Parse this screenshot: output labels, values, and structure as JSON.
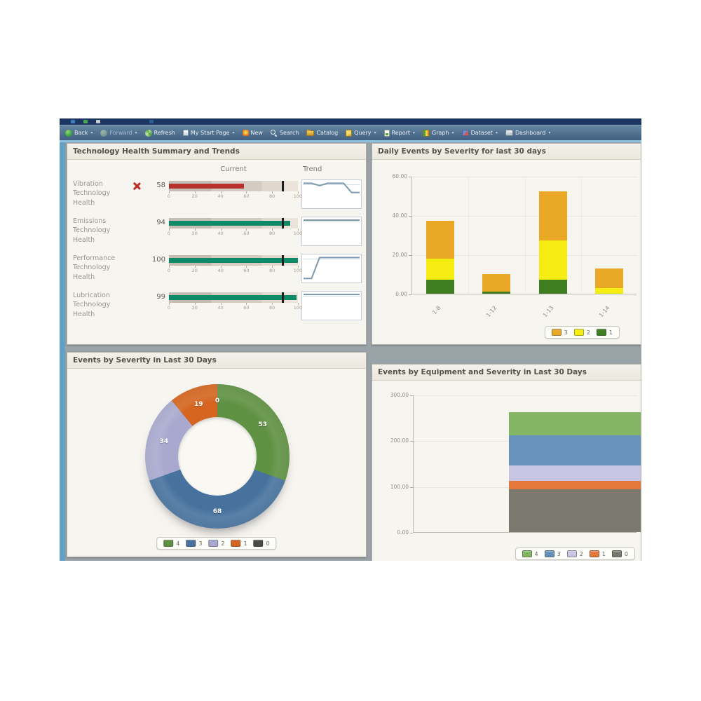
{
  "toolbar": {
    "items": [
      {
        "label": "Back",
        "icon": "back-icon",
        "dropdown": true
      },
      {
        "label": "Forward",
        "icon": "forward-icon",
        "dropdown": true,
        "disabled": true
      },
      {
        "label": "Refresh",
        "icon": "refresh-icon"
      },
      {
        "label": "My Start Page",
        "icon": "my-start-page-icon",
        "dropdown": true
      },
      {
        "label": "New",
        "icon": "new-icon"
      },
      {
        "label": "Search",
        "icon": "search-icon"
      },
      {
        "label": "Catalog",
        "icon": "catalog-icon"
      },
      {
        "label": "Query",
        "icon": "query-icon",
        "dropdown": true
      },
      {
        "label": "Report",
        "icon": "report-icon",
        "dropdown": true
      },
      {
        "label": "Graph",
        "icon": "graph-icon",
        "dropdown": true
      },
      {
        "label": "Dataset",
        "icon": "dataset-icon",
        "dropdown": true
      },
      {
        "label": "Dashboard",
        "icon": "dashboard-icon",
        "dropdown": true
      }
    ]
  },
  "chart_data": [
    {
      "type": "table",
      "subtype": "bullet-gauges-with-sparklines",
      "title": "Technology Health Summary and Trends",
      "columns": [
        "Current",
        "Trend"
      ],
      "xlim": [
        0,
        100
      ],
      "xticks": [
        0,
        20,
        40,
        60,
        80,
        100
      ],
      "threshold": 88,
      "threshold_color": "#1e1e1e",
      "rows": [
        {
          "label": "Vibration Technology Health",
          "value": 58,
          "color": "#b5332c",
          "status": "alert",
          "trend": [
            96,
            96,
            86,
            96,
            96,
            96,
            57,
            57
          ]
        },
        {
          "label": "Emissions Technology Health",
          "value": 94,
          "color": "#0f8a68",
          "status": "ok",
          "trend": [
            97,
            97
          ]
        },
        {
          "label": "Performance Technology Health",
          "value": 100,
          "color": "#0f8a68",
          "status": "ok",
          "trend": [
            8,
            8,
            96,
            96,
            96,
            96,
            96,
            96
          ]
        },
        {
          "label": "Lubrication Technology Health",
          "value": 99,
          "color": "#0f8a68",
          "status": "ok",
          "trend": [
            97,
            97
          ]
        }
      ]
    },
    {
      "type": "bar",
      "stacked": true,
      "title": "Daily Events by Severity for last 30 days",
      "categories": [
        "1-8",
        "1-12",
        "1-13",
        "1-14"
      ],
      "series": [
        {
          "name": "1",
          "color": "#3f7d21",
          "values": [
            7,
            1,
            7,
            0
          ]
        },
        {
          "name": "2",
          "color": "#f6ee12",
          "values": [
            11,
            0,
            20,
            3
          ]
        },
        {
          "name": "3",
          "color": "#e9a826",
          "values": [
            19,
            9,
            25,
            10
          ]
        }
      ],
      "ylim": [
        0,
        60
      ],
      "yticks": [
        "0.00",
        "20.00",
        "40.00",
        "60.00"
      ],
      "grid": true,
      "legend_order": [
        "3",
        "2",
        "1"
      ],
      "legend_position": "bottom-right"
    },
    {
      "type": "pie",
      "donut": true,
      "title": "Events by Severity in Last 30 Days",
      "slices": [
        {
          "label": "4",
          "value": 53,
          "color": "#5f9142"
        },
        {
          "label": "3",
          "value": 68,
          "color": "#47729e"
        },
        {
          "label": "2",
          "value": 34,
          "color": "#a9a9cf"
        },
        {
          "label": "1",
          "value": 19,
          "color": "#d4641f"
        },
        {
          "label": "0",
          "value": 0,
          "color": "#4a4a46"
        }
      ],
      "legend_position": "bottom-center"
    },
    {
      "type": "bar",
      "stacked": true,
      "title": "Events by Equipment and Severity in Last 30 Days",
      "categories": [
        ""
      ],
      "series": [
        {
          "name": "0",
          "color": "#7b796f",
          "values": [
            93
          ]
        },
        {
          "name": "1",
          "color": "#e5793d",
          "values": [
            19
          ]
        },
        {
          "name": "2",
          "color": "#c7c5e2",
          "values": [
            33
          ]
        },
        {
          "name": "3",
          "color": "#6792ba",
          "values": [
            66
          ]
        },
        {
          "name": "4",
          "color": "#84b563",
          "values": [
            51
          ]
        }
      ],
      "ylim": [
        0,
        300
      ],
      "yticks": [
        "0.00",
        "100.00",
        "200.00",
        "300.00"
      ],
      "grid": true,
      "legend_order": [
        "4",
        "3",
        "2",
        "1",
        "0"
      ],
      "legend_position": "bottom-right"
    }
  ]
}
